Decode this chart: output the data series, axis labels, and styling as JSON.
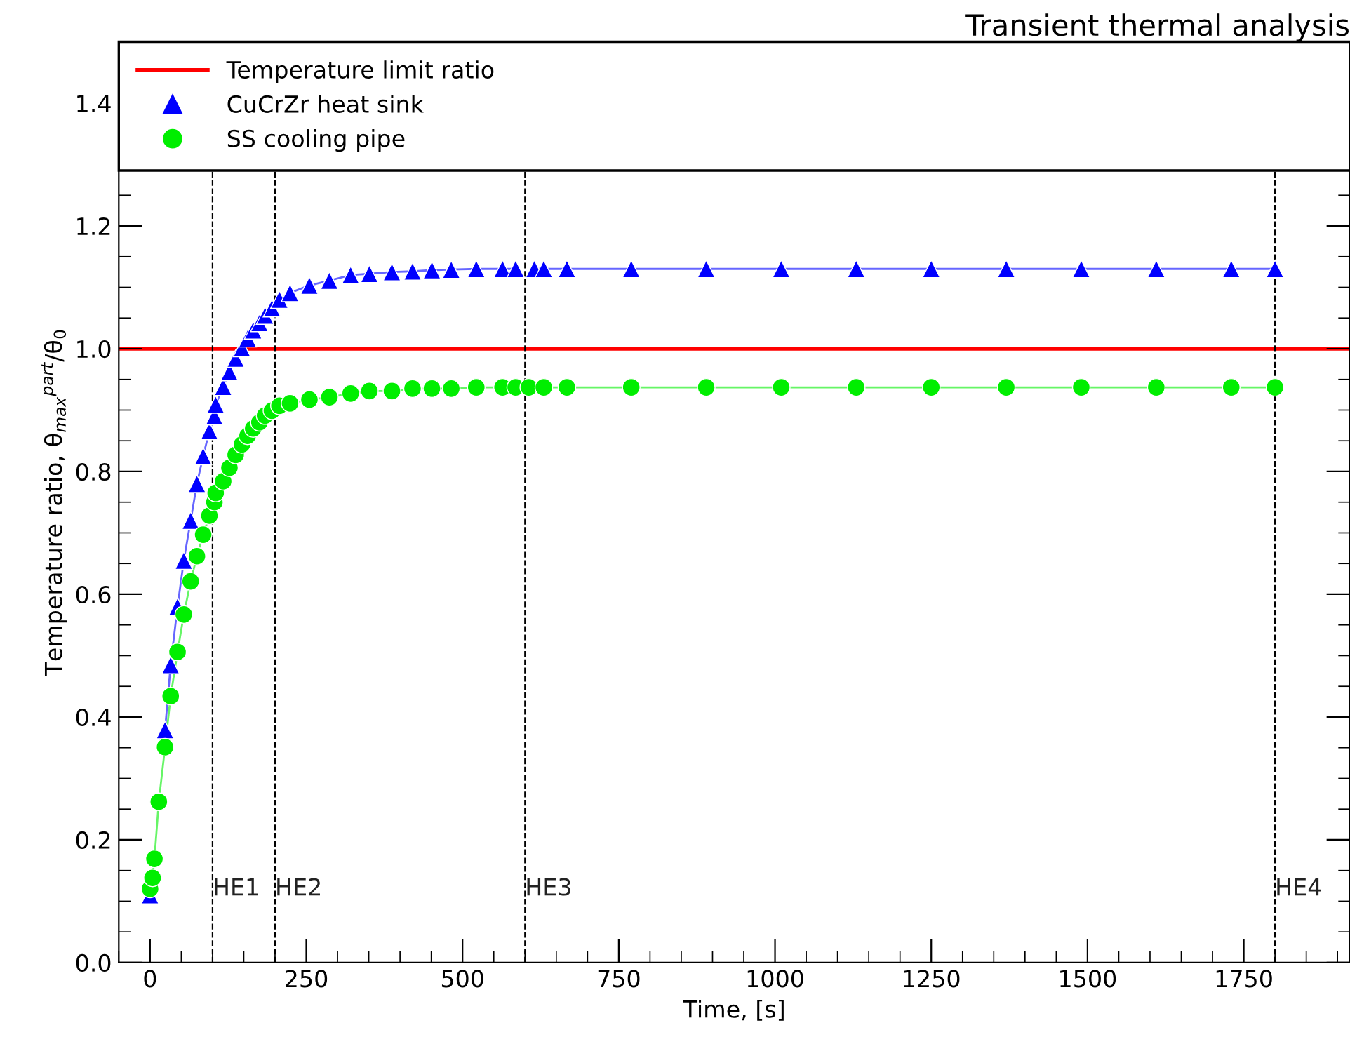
{
  "chart_data": {
    "type": "line",
    "title": "Transient thermal analysis",
    "xlabel": "Time, [s]",
    "ylabel": "Temperature ratio, θ$_{max}$$^{part}$/θ$_{0}$",
    "xlim": [
      -50,
      1920
    ],
    "ylim": [
      0,
      1.5
    ],
    "xticks": [
      0,
      250,
      500,
      750,
      1000,
      1250,
      1500,
      1750
    ],
    "yticks": [
      {
        "value": 0,
        "label": "0.0"
      },
      {
        "value": 0.2,
        "label": "0.2"
      },
      {
        "value": 0.4,
        "label": "0.4"
      },
      {
        "value": 0.6,
        "label": "0.6"
      },
      {
        "value": 0.8,
        "label": "0.8"
      },
      {
        "value": 1.0,
        "label": "1.0"
      },
      {
        "value": 1.2,
        "label": "1.2"
      },
      {
        "value": 1.4,
        "label": "1.4"
      }
    ],
    "grid": false,
    "legend": "top left",
    "line_style": "solid",
    "ref_lines": [
      {
        "axis": "y",
        "value": 1.0,
        "label": "Temperature limit ratio",
        "color": "#ff0000",
        "line_style": "solid"
      },
      {
        "axis": "x",
        "value": 100,
        "label": "HE1",
        "color": "#000000",
        "line_style": "dashed"
      },
      {
        "axis": "x",
        "value": 200,
        "label": "HE2",
        "color": "#000000",
        "line_style": "dashed"
      },
      {
        "axis": "x",
        "value": 600,
        "label": "HE3",
        "color": "#000000",
        "line_style": "dashed"
      },
      {
        "axis": "x",
        "value": 1800,
        "label": "HE4",
        "color": "#000000",
        "line_style": "dashed"
      }
    ],
    "series": [
      {
        "name": "CuCrZr heat sink",
        "color": "#0000ff",
        "marker": "triangle",
        "x": [
          0,
          10,
          14,
          24,
          33,
          44,
          54,
          65,
          75,
          85,
          95,
          103,
          105,
          117,
          127,
          137,
          147,
          156,
          165,
          175,
          184,
          195,
          207,
          224,
          255,
          287,
          321,
          351,
          387,
          420,
          451,
          482,
          522,
          564,
          585,
          606,
          615,
          630,
          667,
          770,
          890,
          1010,
          1130,
          1250,
          1370,
          1490,
          1610,
          1730,
          1800
        ],
        "values": [
          0.11,
          null,
          null,
          0.379,
          0.485,
          0.58,
          0.655,
          0.72,
          0.78,
          0.825,
          0.866,
          0.89,
          0.909,
          0.938,
          0.962,
          0.984,
          1.001,
          1.017,
          1.03,
          1.042,
          1.054,
          1.066,
          1.08,
          1.091,
          1.103,
          1.111,
          1.12,
          1.122,
          1.125,
          1.126,
          1.128,
          1.129,
          1.13,
          1.13,
          1.13,
          null,
          1.13,
          1.13,
          1.13,
          1.13,
          1.13,
          1.13,
          1.13,
          1.13,
          1.13,
          1.13,
          1.13,
          1.13,
          1.13
        ]
      },
      {
        "name": "SS cooling pipe",
        "color": "#00ee00",
        "marker": "circle",
        "x": [
          0,
          4,
          7,
          14,
          24,
          33,
          44,
          54,
          65,
          75,
          85,
          95,
          103,
          105,
          117,
          127,
          137,
          147,
          156,
          165,
          175,
          184,
          195,
          207,
          224,
          255,
          287,
          321,
          351,
          387,
          420,
          451,
          482,
          522,
          564,
          585,
          606,
          615,
          630,
          667,
          770,
          890,
          1010,
          1130,
          1250,
          1370,
          1490,
          1610,
          1730,
          1800
        ],
        "values": [
          0.12,
          0.138,
          0.169,
          0.262,
          0.351,
          0.434,
          0.506,
          0.567,
          0.621,
          0.662,
          0.697,
          0.728,
          0.75,
          0.765,
          0.784,
          0.806,
          0.827,
          0.844,
          0.858,
          0.87,
          0.88,
          0.891,
          0.899,
          0.907,
          0.911,
          0.917,
          0.921,
          0.927,
          0.931,
          0.931,
          0.935,
          0.935,
          0.935,
          0.937,
          0.937,
          0.937,
          0.937,
          null,
          0.937,
          0.937,
          0.937,
          0.937,
          0.937,
          0.937,
          0.937,
          0.937,
          0.937,
          0.937,
          0.937,
          0.937
        ]
      }
    ]
  }
}
